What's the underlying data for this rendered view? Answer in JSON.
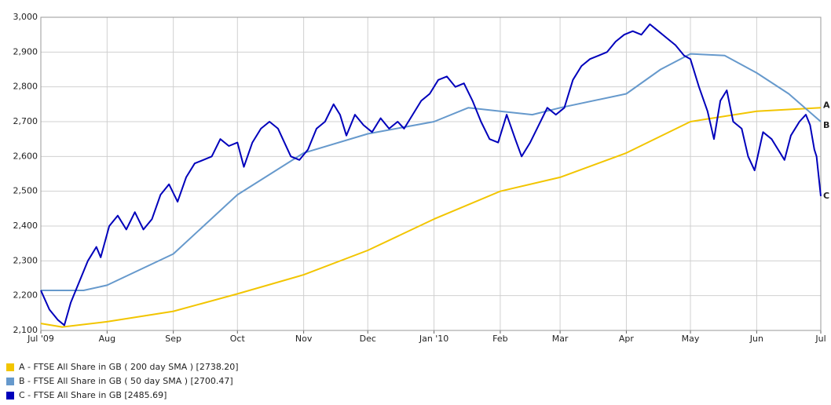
{
  "chart_data": {
    "type": "line",
    "xlim": [
      0,
      365
    ],
    "xticks": [
      {
        "value": 0,
        "label": "Jul '09"
      },
      {
        "value": 31,
        "label": "Aug"
      },
      {
        "value": 62,
        "label": "Sep"
      },
      {
        "value": 92,
        "label": "Oct"
      },
      {
        "value": 123,
        "label": "Nov"
      },
      {
        "value": 153,
        "label": "Dec"
      },
      {
        "value": 184,
        "label": "Jan '10"
      },
      {
        "value": 215,
        "label": "Feb"
      },
      {
        "value": 243,
        "label": "Mar"
      },
      {
        "value": 274,
        "label": "Apr"
      },
      {
        "value": 304,
        "label": "May"
      },
      {
        "value": 335,
        "label": "Jun"
      },
      {
        "value": 365,
        "label": "Jul"
      }
    ],
    "ylim": [
      2100,
      3000
    ],
    "yticks": [
      {
        "value": 2100,
        "label": "2,100"
      },
      {
        "value": 2200,
        "label": "2,200"
      },
      {
        "value": 2300,
        "label": "2,300"
      },
      {
        "value": 2400,
        "label": "2,400"
      },
      {
        "value": 2500,
        "label": "2,500"
      },
      {
        "value": 2600,
        "label": "2,600"
      },
      {
        "value": 2700,
        "label": "2,700"
      },
      {
        "value": 2800,
        "label": "2,800"
      },
      {
        "value": 2900,
        "label": "2,900"
      },
      {
        "value": 3000,
        "label": "3,000"
      }
    ],
    "grid": true,
    "series": [
      {
        "name": "A - FTSE All Share in GB ( 200 day SMA ) [2738.20]",
        "tag": "A",
        "color": "#f2c500",
        "x": [
          0,
          10,
          31,
          62,
          92,
          123,
          153,
          184,
          215,
          243,
          274,
          304,
          335,
          365
        ],
        "values": [
          2120,
          2110,
          2125,
          2155,
          2205,
          2260,
          2330,
          2420,
          2500,
          2540,
          2610,
          2700,
          2730,
          2740
        ]
      },
      {
        "name": "B - FTSE All Share in GB ( 50 day SMA ) [2700.47]",
        "tag": "B",
        "color": "#6699cc",
        "x": [
          0,
          20,
          31,
          62,
          92,
          123,
          153,
          184,
          200,
          215,
          230,
          243,
          274,
          290,
          304,
          320,
          335,
          350,
          365
        ],
        "values": [
          2215,
          2215,
          2230,
          2320,
          2490,
          2610,
          2665,
          2700,
          2740,
          2730,
          2720,
          2740,
          2780,
          2850,
          2895,
          2890,
          2840,
          2780,
          2700
        ]
      },
      {
        "name": "C - FTSE All Share in GB [2485.69]",
        "tag": "C",
        "color": "#0000bb",
        "x": [
          0,
          4,
          8,
          11,
          14,
          18,
          22,
          26,
          28,
          32,
          36,
          40,
          44,
          48,
          52,
          56,
          60,
          64,
          68,
          72,
          76,
          80,
          84,
          88,
          92,
          95,
          99,
          103,
          107,
          111,
          114,
          117,
          121,
          125,
          129,
          133,
          137,
          140,
          143,
          147,
          151,
          155,
          159,
          163,
          167,
          170,
          174,
          178,
          182,
          186,
          190,
          194,
          198,
          202,
          206,
          210,
          214,
          218,
          222,
          225,
          229,
          233,
          237,
          241,
          245,
          249,
          253,
          257,
          261,
          265,
          269,
          273,
          277,
          281,
          285,
          289,
          293,
          297,
          301,
          304,
          308,
          312,
          315,
          318,
          321,
          324,
          328,
          331,
          334,
          338,
          342,
          345,
          348,
          351,
          355,
          358,
          360,
          362,
          363,
          365
        ],
        "values": [
          2215,
          2160,
          2130,
          2115,
          2180,
          2240,
          2300,
          2340,
          2310,
          2400,
          2430,
          2390,
          2440,
          2390,
          2420,
          2490,
          2520,
          2470,
          2540,
          2580,
          2590,
          2600,
          2650,
          2630,
          2640,
          2570,
          2640,
          2680,
          2700,
          2680,
          2640,
          2600,
          2590,
          2620,
          2680,
          2700,
          2750,
          2720,
          2660,
          2720,
          2690,
          2670,
          2710,
          2680,
          2700,
          2680,
          2720,
          2760,
          2780,
          2820,
          2830,
          2800,
          2810,
          2760,
          2700,
          2650,
          2640,
          2720,
          2650,
          2600,
          2640,
          2690,
          2740,
          2720,
          2740,
          2820,
          2860,
          2880,
          2890,
          2900,
          2930,
          2950,
          2960,
          2950,
          2980,
          2960,
          2940,
          2920,
          2890,
          2880,
          2800,
          2730,
          2650,
          2760,
          2790,
          2700,
          2680,
          2600,
          2560,
          2670,
          2650,
          2620,
          2590,
          2660,
          2700,
          2720,
          2690,
          2620,
          2600,
          2486
        ]
      }
    ]
  }
}
